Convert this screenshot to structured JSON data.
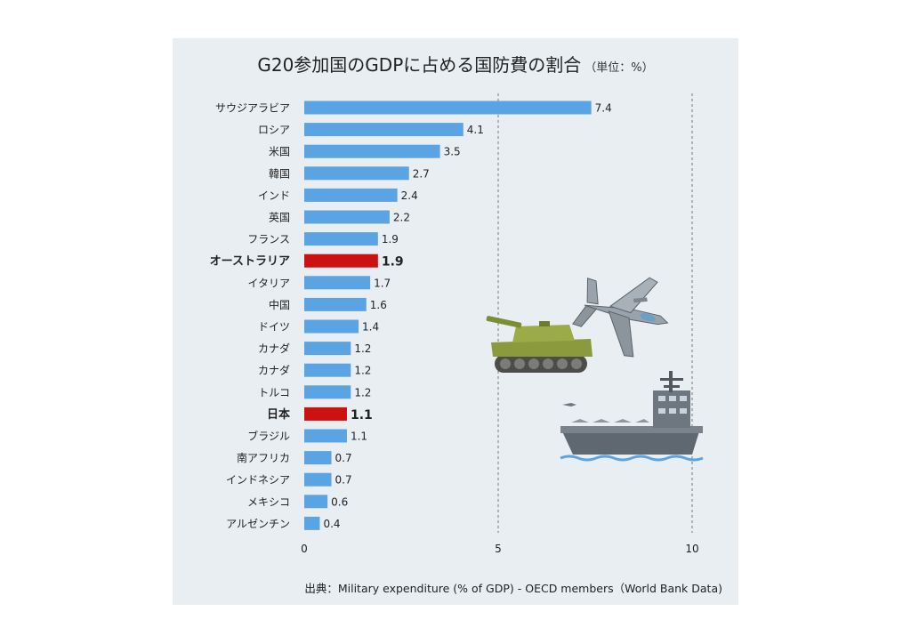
{
  "chart_data": {
    "type": "bar",
    "orientation": "horizontal",
    "title": "G20参加国のGDPに占める国防費の割合",
    "unit": "（単位：%）",
    "source": "出典：Military expenditure (% of GDP) - OECD members（World Bank Data)",
    "xlim": [
      0,
      10
    ],
    "xticks": [
      0,
      5,
      10
    ],
    "gridlines": [
      5,
      10
    ],
    "categories": [
      "サウジアラビア",
      "ロシア",
      "米国",
      "韓国",
      "インド",
      "英国",
      "フランス",
      "オーストラリア",
      "イタリア",
      "中国",
      "ドイツ",
      "カナダ",
      "カナダ",
      "トルコ",
      "日本",
      "ブラジル",
      "南アフリカ",
      "インドネシア",
      "メキシコ",
      "アルゼンチン"
    ],
    "values": [
      7.4,
      4.1,
      3.5,
      2.7,
      2.4,
      2.2,
      1.9,
      1.9,
      1.7,
      1.6,
      1.4,
      1.2,
      1.2,
      1.2,
      1.1,
      1.1,
      0.7,
      0.7,
      0.6,
      0.4
    ],
    "value_labels": [
      "7.4",
      "4.1",
      "3.5",
      "2.7",
      "2.4",
      "2.2",
      "1.9",
      "1.9",
      "1.7",
      "1.6",
      "1.4",
      "1.2",
      "1.2",
      "1.2",
      "1.1",
      "1.1",
      "0.7",
      "0.7",
      "0.6",
      "0.4"
    ],
    "highlighted": [
      "オーストラリア",
      "日本"
    ],
    "colors": {
      "bar": "#5ba4e4",
      "highlight": "#cc1111",
      "panel": "#e8eef2"
    },
    "illustrations": [
      "fighter-jet-icon",
      "tank-icon",
      "aircraft-carrier-icon"
    ]
  }
}
